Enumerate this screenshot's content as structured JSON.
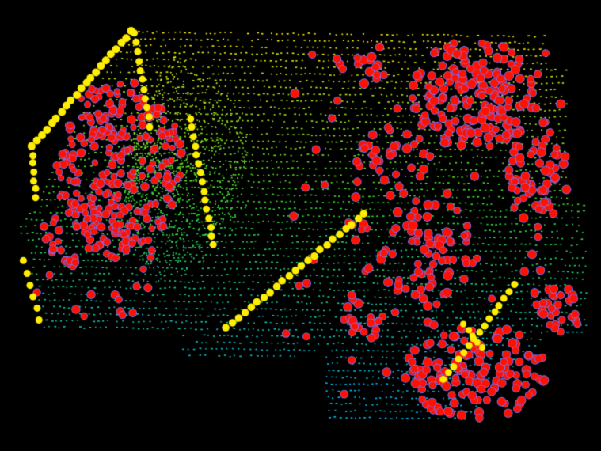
{
  "scene": {
    "background_color": "#000000",
    "layers": [
      {
        "name": "ground-points",
        "color_far": "#ffee00",
        "color_mid": "#33dd33",
        "color_near": "#00bbee"
      },
      {
        "name": "keypoints",
        "color": "#ff1100",
        "edge_color": "#7777ff"
      },
      {
        "name": "edge-points",
        "color": "#ffee00"
      }
    ]
  }
}
